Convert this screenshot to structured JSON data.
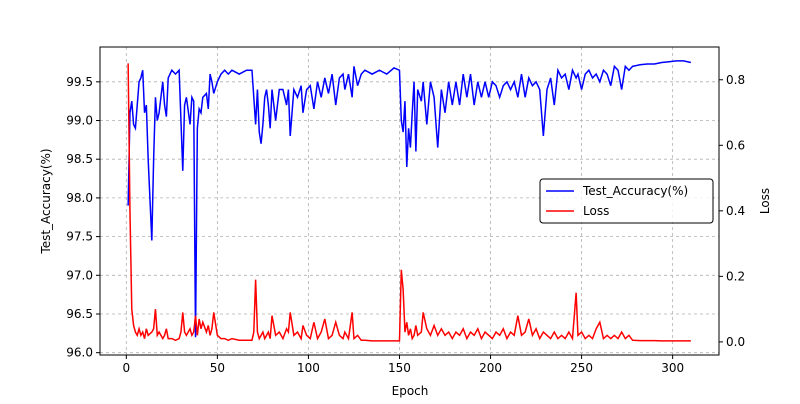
{
  "chart_data": {
    "type": "line",
    "x_label": "Epoch",
    "y_label": "Test_Accuracy(%)",
    "y2_label": "Loss",
    "x": [
      1,
      2,
      3,
      4,
      5,
      6,
      7,
      8,
      9,
      10,
      11,
      12,
      14,
      15,
      16,
      17,
      18,
      20,
      21,
      22,
      23,
      25,
      27,
      29,
      30,
      31,
      32,
      33,
      35,
      36,
      37,
      38,
      39,
      40,
      41,
      42,
      44,
      45,
      46,
      47,
      48,
      50,
      52,
      54,
      56,
      58,
      62,
      66,
      69,
      70,
      71,
      72,
      73,
      74,
      75,
      76,
      77,
      78,
      79,
      80,
      82,
      84,
      86,
      88,
      89,
      90,
      92,
      94,
      96,
      97,
      99,
      101,
      103,
      105,
      107,
      109,
      111,
      113,
      115,
      117,
      119,
      120,
      122,
      124,
      125,
      127,
      129,
      131,
      135,
      139,
      143,
      147,
      150,
      151,
      152,
      153,
      154,
      155,
      156,
      157,
      158,
      159,
      160,
      162,
      163,
      165,
      167,
      169,
      171,
      173,
      175,
      177,
      179,
      181,
      183,
      185,
      187,
      189,
      191,
      193,
      195,
      197,
      199,
      201,
      203,
      205,
      207,
      209,
      211,
      213,
      215,
      217,
      219,
      221,
      223,
      225,
      227,
      229,
      231,
      233,
      235,
      237,
      239,
      241,
      243,
      245,
      247,
      248,
      250,
      252,
      254,
      256,
      258,
      260,
      262,
      264,
      266,
      268,
      270,
      272,
      274,
      276,
      278,
      282,
      286,
      290,
      294,
      298,
      302,
      306,
      310
    ],
    "series": [
      {
        "name": "Test_Accuracy(%)",
        "color": "#0000ff",
        "axis": "y",
        "values": [
          97.9,
          99.1,
          99.25,
          98.95,
          98.9,
          99.2,
          99.5,
          99.55,
          99.65,
          99.1,
          99.2,
          98.5,
          97.45,
          98.5,
          99.3,
          99.0,
          99.1,
          99.5,
          99.2,
          99.05,
          99.55,
          99.65,
          99.6,
          99.65,
          99.0,
          98.35,
          99.2,
          99.3,
          98.95,
          99.3,
          99.25,
          96.2,
          98.9,
          99.15,
          99.1,
          99.3,
          99.35,
          99.15,
          99.6,
          99.5,
          99.35,
          99.5,
          99.6,
          99.65,
          99.6,
          99.65,
          99.6,
          99.65,
          99.65,
          99.3,
          98.95,
          99.4,
          98.85,
          98.7,
          98.95,
          99.3,
          99.4,
          99.2,
          98.9,
          99.4,
          99.0,
          99.4,
          99.4,
          99.2,
          99.4,
          98.8,
          99.4,
          99.3,
          99.45,
          99.1,
          99.4,
          99.45,
          99.15,
          99.5,
          99.3,
          99.55,
          99.35,
          99.6,
          99.2,
          99.55,
          99.6,
          99.4,
          99.6,
          99.3,
          99.7,
          99.45,
          99.6,
          99.65,
          99.6,
          99.65,
          99.6,
          99.68,
          99.65,
          99.0,
          98.85,
          99.25,
          98.4,
          98.9,
          98.65,
          99.1,
          99.5,
          98.6,
          99.4,
          99.25,
          99.5,
          98.95,
          99.5,
          99.3,
          98.65,
          99.4,
          99.1,
          99.5,
          99.2,
          99.5,
          99.2,
          99.6,
          99.3,
          99.6,
          99.2,
          99.5,
          99.3,
          99.5,
          99.3,
          99.5,
          99.45,
          99.3,
          99.45,
          99.5,
          99.4,
          99.5,
          99.3,
          99.6,
          99.3,
          99.55,
          99.45,
          99.5,
          99.4,
          98.8,
          99.4,
          99.55,
          99.2,
          99.65,
          99.55,
          99.6,
          99.4,
          99.65,
          99.55,
          99.6,
          99.4,
          99.6,
          99.65,
          99.55,
          99.6,
          99.5,
          99.65,
          99.6,
          99.45,
          99.7,
          99.65,
          99.4,
          99.7,
          99.65,
          99.7,
          99.72,
          99.73,
          99.73,
          99.75,
          99.76,
          99.77,
          99.77,
          99.75
        ]
      },
      {
        "name": "Loss",
        "color": "#ff0000",
        "axis": "y2",
        "values": [
          0.85,
          0.4,
          0.1,
          0.05,
          0.03,
          0.02,
          0.04,
          0.02,
          0.03,
          0.01,
          0.04,
          0.02,
          0.03,
          0.04,
          0.1,
          0.02,
          0.03,
          0.01,
          0.02,
          0.04,
          0.01,
          0.01,
          0.005,
          0.01,
          0.03,
          0.09,
          0.03,
          0.02,
          0.04,
          0.02,
          0.03,
          0.08,
          0.02,
          0.07,
          0.04,
          0.06,
          0.03,
          0.05,
          0.02,
          0.04,
          0.09,
          0.02,
          0.01,
          0.01,
          0.005,
          0.01,
          0.005,
          0.005,
          0.005,
          0.03,
          0.19,
          0.03,
          0.01,
          0.02,
          0.03,
          0.01,
          0.02,
          0.03,
          0.01,
          0.08,
          0.02,
          0.03,
          0.01,
          0.04,
          0.03,
          0.09,
          0.02,
          0.03,
          0.01,
          0.05,
          0.02,
          0.01,
          0.06,
          0.01,
          0.03,
          0.07,
          0.01,
          0.02,
          0.06,
          0.02,
          0.01,
          0.03,
          0.01,
          0.09,
          0.01,
          0.02,
          0.005,
          0.005,
          0.003,
          0.003,
          0.003,
          0.003,
          0.003,
          0.22,
          0.16,
          0.03,
          0.06,
          0.02,
          0.04,
          0.01,
          0.02,
          0.05,
          0.02,
          0.03,
          0.09,
          0.04,
          0.02,
          0.05,
          0.02,
          0.04,
          0.02,
          0.03,
          0.01,
          0.03,
          0.02,
          0.04,
          0.01,
          0.03,
          0.02,
          0.04,
          0.01,
          0.03,
          0.02,
          0.01,
          0.03,
          0.02,
          0.04,
          0.01,
          0.03,
          0.02,
          0.08,
          0.02,
          0.03,
          0.07,
          0.02,
          0.04,
          0.01,
          0.03,
          0.02,
          0.01,
          0.03,
          0.01,
          0.02,
          0.01,
          0.03,
          0.01,
          0.15,
          0.02,
          0.03,
          0.01,
          0.02,
          0.01,
          0.04,
          0.06,
          0.01,
          0.02,
          0.01,
          0.02,
          0.01,
          0.03,
          0.01,
          0.02,
          0.005,
          0.004,
          0.004,
          0.004,
          0.003,
          0.003,
          0.003,
          0.003,
          0.003
        ]
      }
    ],
    "xlim": [
      -14.45,
      325.45
    ],
    "xticks": [
      0,
      50,
      100,
      150,
      200,
      250,
      300
    ],
    "ylim": [
      95.97,
      99.95
    ],
    "yticks": [
      {
        "value": 96,
        "label": "96.0"
      },
      96.5,
      {
        "value": 97,
        "label": "97.0"
      },
      97.5,
      {
        "value": 98,
        "label": "98.0"
      },
      98.5,
      {
        "value": 99,
        "label": "99.0"
      },
      99.5
    ],
    "y2lim": [
      -0.04,
      0.9
    ],
    "y2ticks": [
      {
        "value": 0,
        "label": "0.0"
      },
      0.2,
      0.4,
      0.6,
      0.8
    ],
    "grid": true,
    "legend": "center right"
  }
}
